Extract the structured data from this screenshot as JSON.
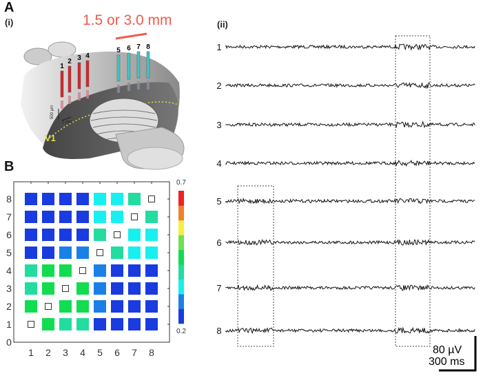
{
  "panel_a": {
    "letter": "A",
    "sub_i": "(i)",
    "sub_ii": "(ii)",
    "distance_label": "1.5 or 3.0 mm",
    "distance_color": "#f05a4a",
    "electrode_labels": [
      "1",
      "2",
      "3",
      "4",
      "5",
      "6",
      "7",
      "8"
    ],
    "electrode_colors": {
      "group1": "#d8262c",
      "group2": "#3cc8c8"
    },
    "scale_depth": "500 µm",
    "scale_width": "1 mm",
    "area_label": "V1",
    "area_color": "#e8e040"
  },
  "traces": {
    "channels": [
      "1",
      "2",
      "3",
      "4",
      "5",
      "6",
      "7",
      "8"
    ],
    "scale_amplitude": "80 µV",
    "scale_time": "300 ms"
  },
  "panel_b": {
    "letter": "B"
  },
  "chart_data": {
    "type": "heatmap",
    "title": "",
    "xlabel": "",
    "ylabel": "",
    "x_ticks": [
      "1",
      "2",
      "3",
      "4",
      "5",
      "6",
      "7",
      "8"
    ],
    "y_ticks": [
      "0",
      "1",
      "2",
      "3",
      "4",
      "5",
      "6",
      "7",
      "8"
    ],
    "colorbar": {
      "min": 0.2,
      "max": 0.7,
      "min_label": "0.2",
      "max_label": "0.7",
      "colors": [
        "#1a3be0",
        "#1a80e8",
        "#18f0f0",
        "#22dca0",
        "#12dc50",
        "#70e050",
        "#f4f040",
        "#f08030",
        "#ee2222"
      ]
    },
    "diagonal": "empty",
    "rows_y8_to_y1": [
      [
        0.22,
        0.22,
        0.22,
        0.22,
        0.33,
        0.33,
        0.38,
        null
      ],
      [
        0.22,
        0.22,
        0.22,
        0.22,
        0.33,
        0.33,
        null,
        0.38
      ],
      [
        0.22,
        0.22,
        0.22,
        0.22,
        0.38,
        null,
        0.33,
        0.33
      ],
      [
        0.22,
        0.22,
        0.28,
        0.28,
        null,
        0.38,
        0.33,
        0.33
      ],
      [
        0.38,
        0.43,
        0.45,
        null,
        0.28,
        0.22,
        0.22,
        0.22
      ],
      [
        0.38,
        0.43,
        null,
        0.45,
        0.28,
        0.22,
        0.22,
        0.22
      ],
      [
        0.43,
        null,
        0.43,
        0.43,
        0.28,
        0.22,
        0.22,
        0.22
      ],
      [
        null,
        0.43,
        0.38,
        0.38,
        0.22,
        0.22,
        0.22,
        0.22
      ]
    ]
  }
}
